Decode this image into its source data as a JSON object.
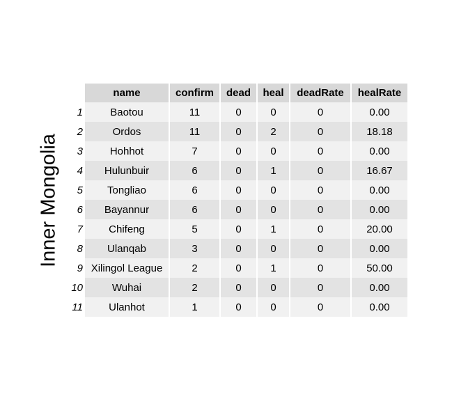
{
  "chart_data": {
    "type": "table",
    "title": "Inner Mongolia",
    "columns": [
      "name",
      "confirm",
      "dead",
      "heal",
      "deadRate",
      "healRate"
    ],
    "rows": [
      {
        "index": "1",
        "name": "Baotou",
        "confirm": "11",
        "dead": "0",
        "heal": "0",
        "deadRate": "0",
        "healRate": "0.00"
      },
      {
        "index": "2",
        "name": "Ordos",
        "confirm": "11",
        "dead": "0",
        "heal": "2",
        "deadRate": "0",
        "healRate": "18.18"
      },
      {
        "index": "3",
        "name": "Hohhot",
        "confirm": "7",
        "dead": "0",
        "heal": "0",
        "deadRate": "0",
        "healRate": "0.00"
      },
      {
        "index": "4",
        "name": "Hulunbuir",
        "confirm": "6",
        "dead": "0",
        "heal": "1",
        "deadRate": "0",
        "healRate": "16.67"
      },
      {
        "index": "5",
        "name": "Tongliao",
        "confirm": "6",
        "dead": "0",
        "heal": "0",
        "deadRate": "0",
        "healRate": "0.00"
      },
      {
        "index": "6",
        "name": "Bayannur",
        "confirm": "6",
        "dead": "0",
        "heal": "0",
        "deadRate": "0",
        "healRate": "0.00"
      },
      {
        "index": "7",
        "name": "Chifeng",
        "confirm": "5",
        "dead": "0",
        "heal": "1",
        "deadRate": "0",
        "healRate": "20.00"
      },
      {
        "index": "8",
        "name": "Ulanqab",
        "confirm": "3",
        "dead": "0",
        "heal": "0",
        "deadRate": "0",
        "healRate": "0.00"
      },
      {
        "index": "9",
        "name": "Xilingol League",
        "confirm": "2",
        "dead": "0",
        "heal": "1",
        "deadRate": "0",
        "healRate": "50.00"
      },
      {
        "index": "10",
        "name": "Wuhai",
        "confirm": "2",
        "dead": "0",
        "heal": "0",
        "deadRate": "0",
        "healRate": "0.00"
      },
      {
        "index": "11",
        "name": "Ulanhot",
        "confirm": "1",
        "dead": "0",
        "heal": "0",
        "deadRate": "0",
        "healRate": "0.00"
      }
    ]
  }
}
